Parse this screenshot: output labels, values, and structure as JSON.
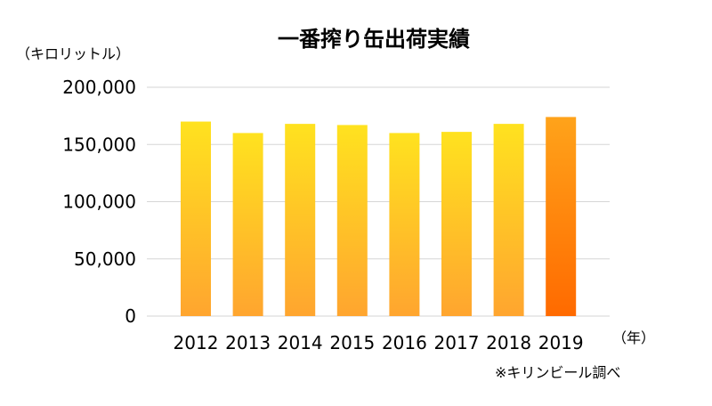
{
  "chart_data": {
    "type": "bar",
    "title": "一番搾り缶出荷実績",
    "ylabel": "（キロリットル）",
    "xlabel": "（年）",
    "source_note": "※キリンビール調べ",
    "categories": [
      "2012",
      "2013",
      "2014",
      "2015",
      "2016",
      "2017",
      "2018",
      "2019"
    ],
    "values": [
      170000,
      160000,
      168000,
      167000,
      160000,
      161000,
      168000,
      174000
    ],
    "ylim": [
      0,
      200000
    ],
    "yticks": [
      0,
      50000,
      100000,
      150000,
      200000
    ],
    "ytick_labels": [
      "0",
      "50,000",
      "100,000",
      "150,000",
      "200,000"
    ],
    "grid": true,
    "colors": {
      "bar_top": "#FFE21F",
      "bar_bottom": "#FFA52F",
      "highlight_top": "#FFA31A",
      "highlight_bottom": "#FF6A00",
      "grid": "#D6D6D6"
    }
  }
}
